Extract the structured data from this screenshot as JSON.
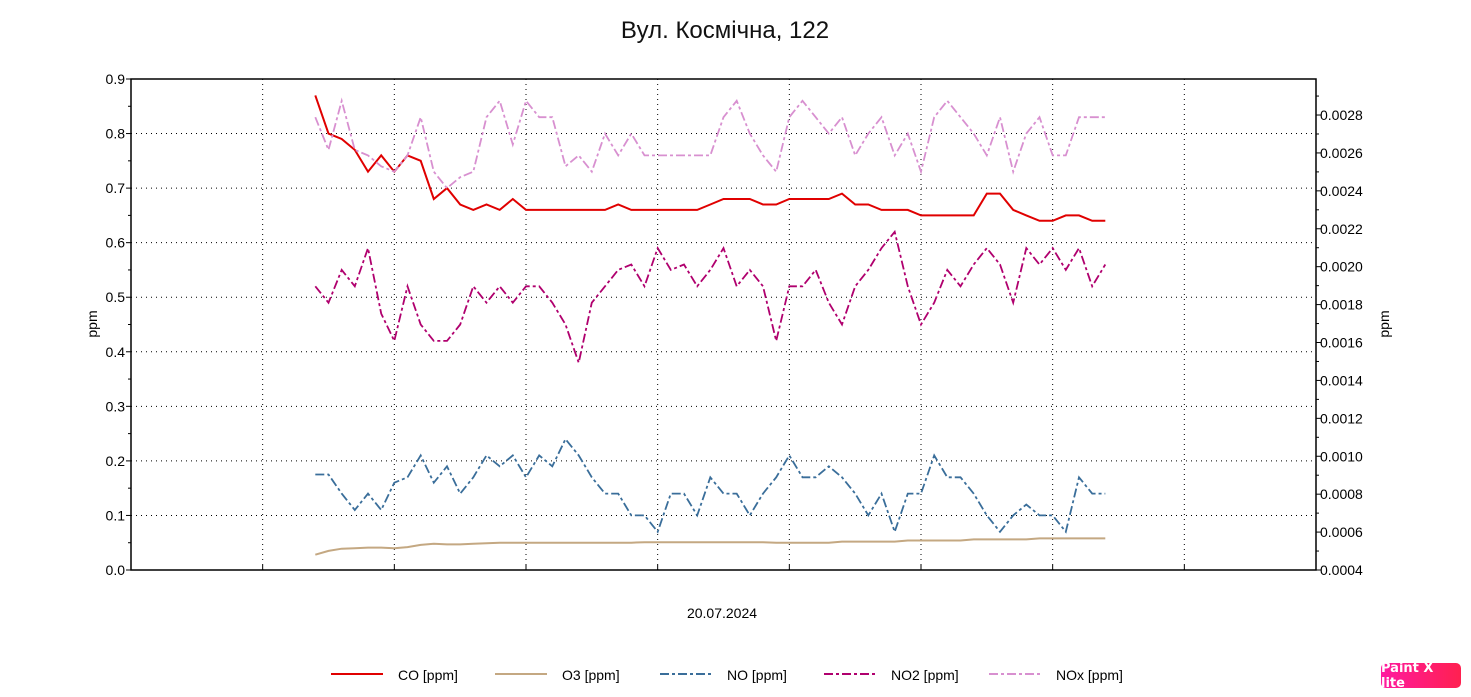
{
  "chart_data": {
    "type": "line",
    "title": "Вул. Космічна, 122",
    "xlabel": "20.07.2024",
    "ylabel": "ppm",
    "y2label": "ppm",
    "ylim": [
      0,
      0.9
    ],
    "yticks": [
      "0.0",
      "0.1",
      "0.2",
      "0.3",
      "0.4",
      "0.5",
      "0.6",
      "0.7",
      "0.8",
      "0.9"
    ],
    "y2lim": [
      0.0004,
      0.00299
    ],
    "y2ticks": [
      "0.0004",
      "0.0006",
      "0.0008",
      "0.0010",
      "0.0012",
      "0.0014",
      "0.0016",
      "0.0018",
      "0.0020",
      "0.0022",
      "0.0024",
      "0.0026",
      "0.0028"
    ],
    "xlim": [
      0,
      90
    ],
    "x_start": 14,
    "x_step": 1,
    "grid": true,
    "legend_position": "bottom",
    "series": [
      {
        "name": "CO [ppm]",
        "color": "#e00000",
        "style": "solid",
        "values": [
          0.87,
          0.8,
          0.79,
          0.77,
          0.73,
          0.76,
          0.73,
          0.76,
          0.75,
          0.68,
          0.7,
          0.67,
          0.66,
          0.67,
          0.66,
          0.68,
          0.66,
          0.66,
          0.66,
          0.66,
          0.66,
          0.66,
          0.66,
          0.67,
          0.66,
          0.66,
          0.66,
          0.66,
          0.66,
          0.66,
          0.67,
          0.68,
          0.68,
          0.68,
          0.67,
          0.67,
          0.68,
          0.68,
          0.68,
          0.68,
          0.69,
          0.67,
          0.67,
          0.66,
          0.66,
          0.66,
          0.65,
          0.65,
          0.65,
          0.65,
          0.65,
          0.69,
          0.69,
          0.66,
          0.65,
          0.64,
          0.64,
          0.65,
          0.65,
          0.64,
          0.64
        ]
      },
      {
        "name": "O3 [ppm]",
        "color": "#c4a882",
        "style": "solid",
        "values": [
          0.028,
          0.035,
          0.039,
          0.04,
          0.041,
          0.041,
          0.04,
          0.042,
          0.046,
          0.048,
          0.047,
          0.047,
          0.048,
          0.049,
          0.05,
          0.05,
          0.05,
          0.05,
          0.05,
          0.05,
          0.05,
          0.05,
          0.05,
          0.05,
          0.05,
          0.051,
          0.051,
          0.051,
          0.051,
          0.051,
          0.051,
          0.051,
          0.051,
          0.051,
          0.051,
          0.05,
          0.05,
          0.05,
          0.05,
          0.05,
          0.052,
          0.052,
          0.052,
          0.052,
          0.052,
          0.054,
          0.054,
          0.054,
          0.054,
          0.054,
          0.056,
          0.056,
          0.056,
          0.056,
          0.056,
          0.058,
          0.058,
          0.058,
          0.058,
          0.058,
          0.058
        ]
      },
      {
        "name": "NO [ppm]",
        "color": "#3a6e9a",
        "style": "dashdot",
        "values": [
          0.175,
          0.175,
          0.14,
          0.11,
          0.14,
          0.11,
          0.16,
          0.17,
          0.21,
          0.16,
          0.19,
          0.14,
          0.17,
          0.21,
          0.19,
          0.21,
          0.17,
          0.21,
          0.19,
          0.24,
          0.21,
          0.17,
          0.14,
          0.14,
          0.1,
          0.1,
          0.07,
          0.14,
          0.14,
          0.1,
          0.17,
          0.14,
          0.14,
          0.1,
          0.14,
          0.17,
          0.21,
          0.17,
          0.17,
          0.19,
          0.17,
          0.14,
          0.1,
          0.14,
          0.07,
          0.14,
          0.14,
          0.21,
          0.17,
          0.17,
          0.14,
          0.1,
          0.07,
          0.1,
          0.12,
          0.1,
          0.1,
          0.07,
          0.17,
          0.14,
          0.14
        ]
      },
      {
        "name": "NO2 [ppm]",
        "color": "#b0006e",
        "style": "dashdot",
        "values": [
          0.52,
          0.49,
          0.55,
          0.52,
          0.59,
          0.47,
          0.42,
          0.52,
          0.45,
          0.42,
          0.42,
          0.45,
          0.52,
          0.49,
          0.52,
          0.49,
          0.52,
          0.52,
          0.49,
          0.45,
          0.38,
          0.49,
          0.52,
          0.55,
          0.56,
          0.52,
          0.59,
          0.55,
          0.56,
          0.52,
          0.55,
          0.59,
          0.52,
          0.55,
          0.52,
          0.42,
          0.52,
          0.52,
          0.55,
          0.49,
          0.45,
          0.52,
          0.55,
          0.59,
          0.62,
          0.52,
          0.45,
          0.49,
          0.55,
          0.52,
          0.56,
          0.59,
          0.56,
          0.49,
          0.59,
          0.56,
          0.59,
          0.55,
          0.59,
          0.52,
          0.56
        ]
      },
      {
        "name": "NOx [ppm]",
        "color": "#d890d0",
        "style": "dashdot",
        "values": [
          0.83,
          0.77,
          0.86,
          0.77,
          0.76,
          0.74,
          0.73,
          0.76,
          0.83,
          0.73,
          0.7,
          0.72,
          0.73,
          0.83,
          0.86,
          0.78,
          0.86,
          0.83,
          0.83,
          0.74,
          0.76,
          0.73,
          0.8,
          0.76,
          0.8,
          0.76,
          0.76,
          0.76,
          0.76,
          0.76,
          0.76,
          0.83,
          0.86,
          0.8,
          0.76,
          0.73,
          0.83,
          0.86,
          0.83,
          0.8,
          0.83,
          0.76,
          0.8,
          0.83,
          0.76,
          0.8,
          0.73,
          0.83,
          0.86,
          0.83,
          0.8,
          0.76,
          0.83,
          0.73,
          0.8,
          0.83,
          0.76,
          0.76,
          0.83,
          0.83,
          0.83
        ]
      }
    ]
  },
  "watermark": "Paint X lite"
}
